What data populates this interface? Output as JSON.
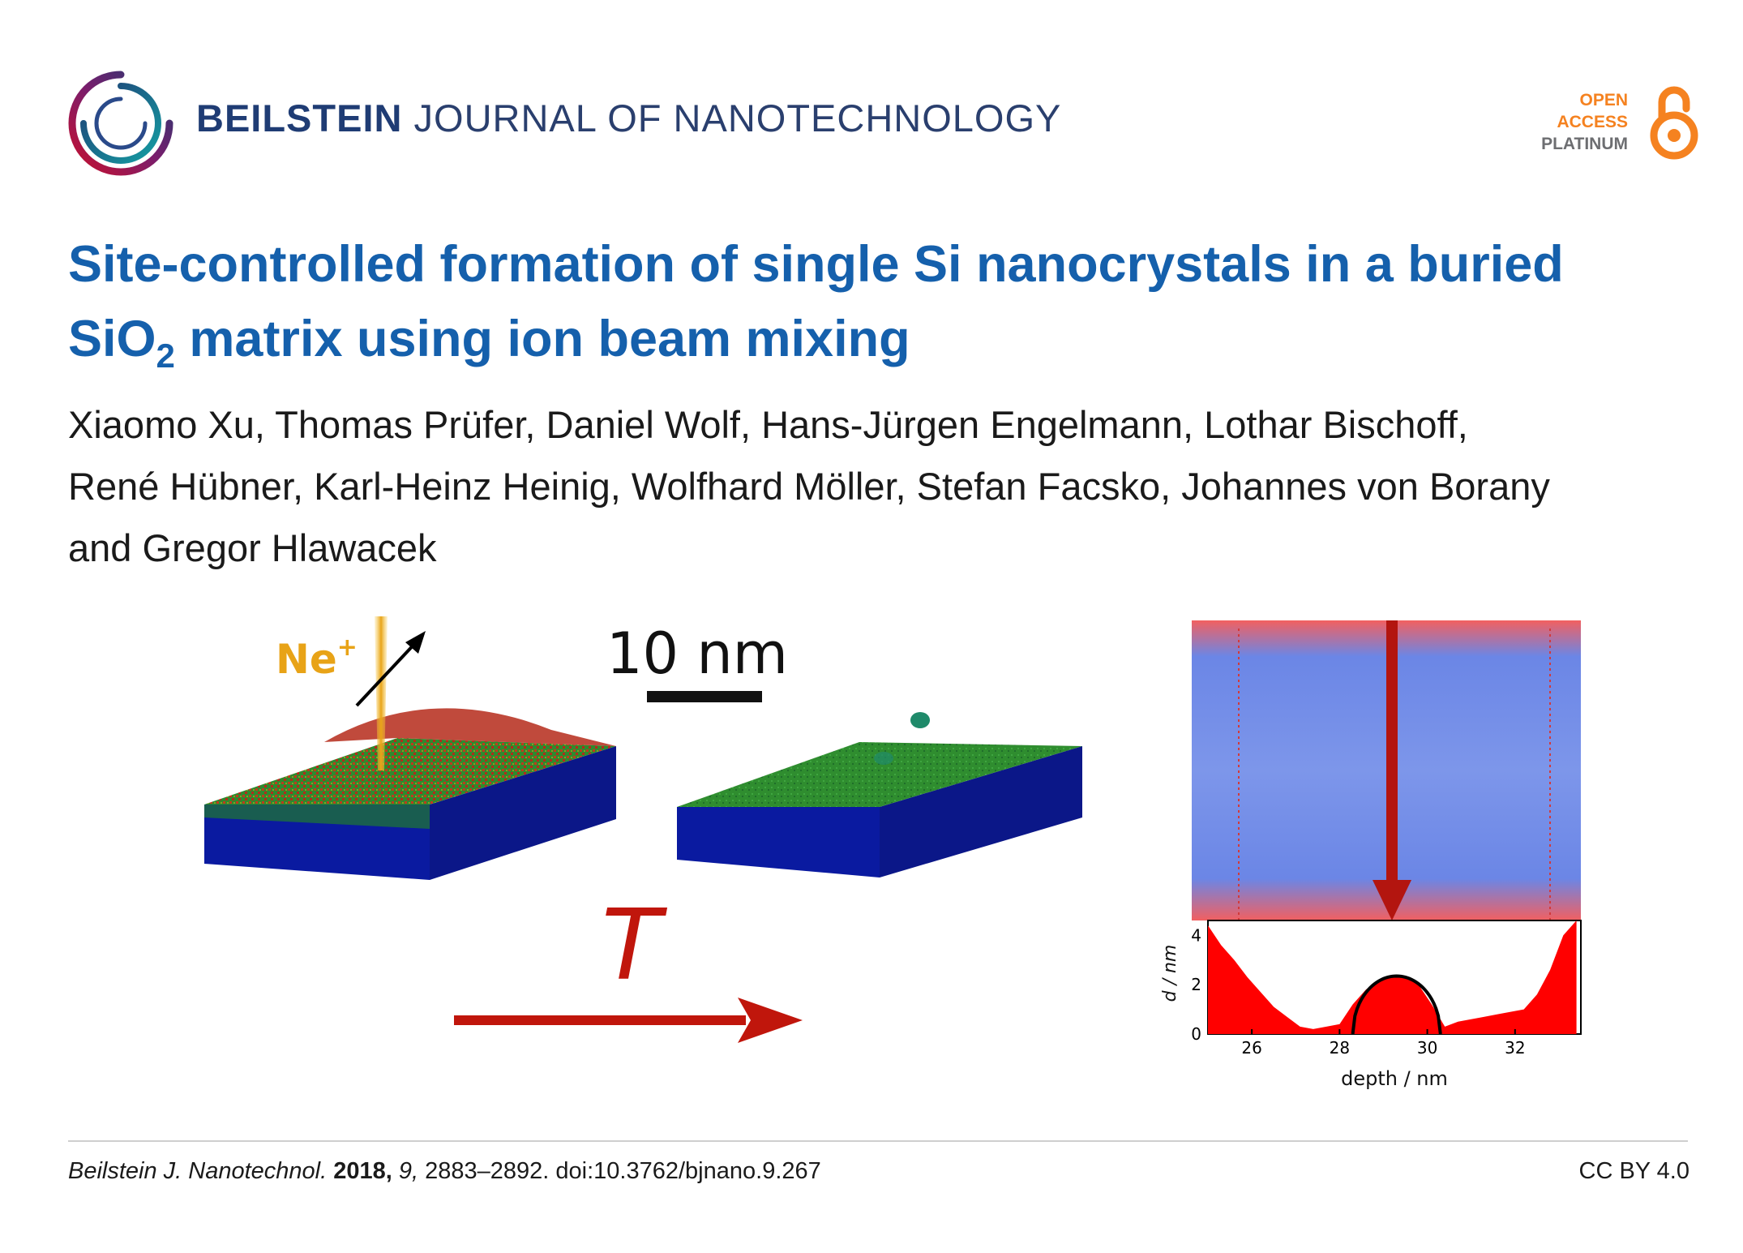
{
  "journal": {
    "name_bold": "BEILSTEIN",
    "name_rest": "JOURNAL OF NANOTECHNOLOGY"
  },
  "badge": {
    "line1": "OPEN",
    "line2": "ACCESS",
    "line3": "PLATINUM",
    "icon": "open-access-lock-icon"
  },
  "article": {
    "title_part1": "Site-controlled formation of single Si nanocrystals in a buried",
    "title_si": "SiO",
    "title_sub": "2",
    "title_part2": " matrix using ion beam mixing",
    "authors_line1": "Xiaomo Xu, Thomas Prüfer, Daniel Wolf, Hans-Jürgen Engelmann, Lothar Bischoff,",
    "authors_line2": "René Hübner, Karl-Heinz Heinig, Wolfhard Möller, Stefan Facsko, Johannes von Borany",
    "authors_line3": "and Gregor Hlawacek"
  },
  "figure": {
    "ion_label": "Ne",
    "ion_charge": "+",
    "scalebar_label": "10 nm",
    "temperature_label": "T",
    "chart_data": {
      "type": "area",
      "xlabel": "depth / nm",
      "ylabel": "d / nm",
      "x_ticks": [
        "26",
        "28",
        "30",
        "32"
      ],
      "y_ticks": [
        "0",
        "2",
        "4"
      ],
      "xlim": [
        25,
        33.5
      ],
      "ylim": [
        0,
        4.6
      ],
      "series": [
        {
          "values_x": [
            25,
            25.3,
            25.6,
            25.9,
            26.2,
            26.5,
            26.8,
            27.1,
            27.4,
            27.7,
            28,
            28.3,
            28.6,
            28.9,
            29.2,
            29.5,
            29.8,
            30.1,
            30.4,
            30.7,
            31,
            31.3,
            31.6,
            31.9,
            32.2,
            32.5,
            32.8,
            33.1,
            33.4
          ],
          "values_y": [
            4.4,
            3.6,
            3.0,
            2.3,
            1.7,
            1.1,
            0.7,
            0.3,
            0.2,
            0.3,
            0.4,
            1.2,
            1.8,
            2.2,
            2.4,
            2.3,
            2.0,
            1.2,
            0.3,
            0.5,
            0.6,
            0.7,
            0.8,
            0.9,
            1.0,
            1.6,
            2.6,
            4.0,
            4.6
          ]
        }
      ],
      "fit_curve": {
        "center": 29.3,
        "half_width": 1.0,
        "height": 2.35
      }
    }
  },
  "citation": {
    "journal_abbrev": "Beilstein J. Nanotechnol.",
    "year": "2018,",
    "volume": "9,",
    "pages_doi": "2883–2892. doi:10.3762/bjnano.9.267"
  },
  "license": "CC BY 4.0",
  "colors": {
    "title": "#1560ac",
    "journal": "#1f3c74",
    "oa_orange": "#f58220"
  }
}
